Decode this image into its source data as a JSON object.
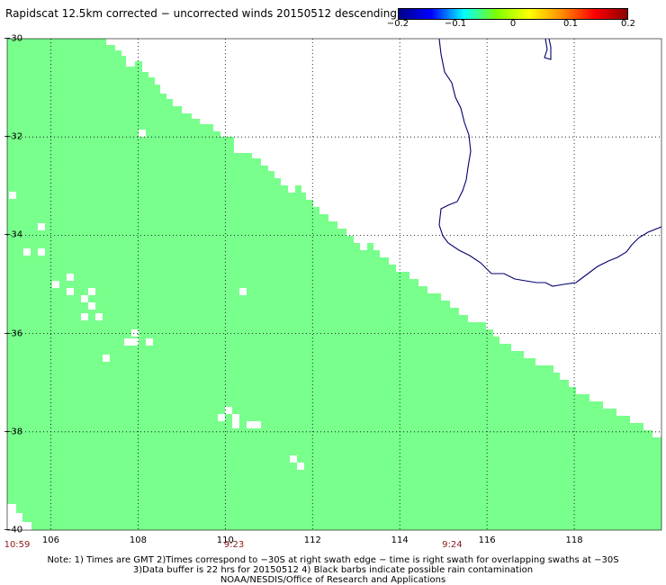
{
  "title": "Rapidscat 12.5km corrected − uncorrected winds 20150512 descending",
  "colorbar": {
    "colors": [
      "#00008b",
      "#0000ff",
      "#00ffff",
      "#7fff00",
      "#ffff00",
      "#ff8c00",
      "#ff0000",
      "#8b0000"
    ],
    "ticks": [
      "−0.2",
      "−0.1",
      "0",
      "0.1",
      "0.2"
    ],
    "tick_values": [
      -0.2,
      -0.1,
      0,
      0.1,
      0.2
    ]
  },
  "map": {
    "lon_range": [
      105,
      120
    ],
    "lat_range": [
      -40,
      -30
    ],
    "lat_labels": [
      "−30",
      "−32",
      "−34",
      "−36",
      "−38",
      "−40"
    ],
    "lat_values": [
      -30,
      -32,
      -34,
      -36,
      -38,
      -40
    ],
    "lon_labels": [
      "106",
      "108",
      "110",
      "112",
      "114",
      "116",
      "118"
    ],
    "lon_values": [
      106,
      108,
      110,
      112,
      114,
      116,
      118
    ],
    "swath_color": "#78ff8c",
    "coast_color": "#00006e",
    "grid_lines": "dotted"
  },
  "times": [
    {
      "label": "10:59",
      "lon": 105.0
    },
    {
      "label": "9:23",
      "lon": 110.2
    },
    {
      "label": "9:24",
      "lon": 115.2
    }
  ],
  "notes": [
    "Note: 1) Times are GMT 2)Times correspond to −30S at right swath edge − time is right swath for overlapping swaths at −30S",
    "3)Data buffer is 22 hrs for 20150512 4) Black barbs indicate possible rain contamination",
    "NOAA/NESDIS/Office of Research and Applications"
  ]
}
